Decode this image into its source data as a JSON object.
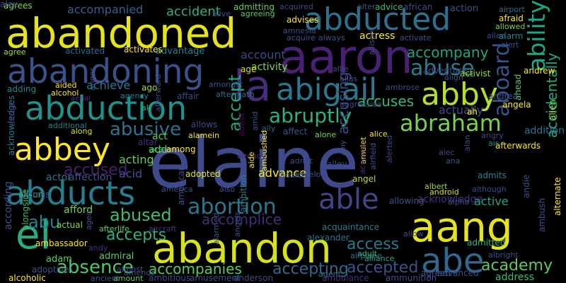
{
  "words": [
    {
      "text": "elaine",
      "color": "#3e4a89"
    },
    {
      "text": "abandoned",
      "color": "#e5e419"
    },
    {
      "text": "aaron",
      "color": "#482173"
    },
    {
      "text": "abandon",
      "color": "#d8e219"
    },
    {
      "text": "abandoning",
      "color": "#3b518b"
    },
    {
      "text": "abducted",
      "color": "#2c728e"
    },
    {
      "text": "la",
      "color": "#472d7b"
    },
    {
      "text": "abduction",
      "color": "#21918c"
    },
    {
      "text": "aang",
      "color": "#e5e419"
    },
    {
      "text": "abducts",
      "color": "#287d8e"
    },
    {
      "text": "el",
      "color": "#26ad81"
    },
    {
      "text": "abigail",
      "color": "#2a788e"
    },
    {
      "text": "abby",
      "color": "#b5de2b"
    },
    {
      "text": "abbey",
      "color": "#fde725"
    },
    {
      "text": "abe",
      "color": "#31688e"
    },
    {
      "text": "abraham",
      "color": "#7ad151"
    },
    {
      "text": "aboard",
      "color": "#3b528b"
    },
    {
      "text": "ability",
      "color": "#21a685"
    },
    {
      "text": "able",
      "color": "#414487"
    },
    {
      "text": "abortion",
      "color": "#2a788e"
    },
    {
      "text": "abruptly",
      "color": "#2db27d"
    },
    {
      "text": "abuse",
      "color": "#287d8e"
    },
    {
      "text": "abusive",
      "color": "#2c728e"
    },
    {
      "text": "absence",
      "color": "#54c568"
    },
    {
      "text": "abused",
      "color": "#3fbc73"
    },
    {
      "text": "abu",
      "color": "#25848e"
    },
    {
      "text": "accidentally",
      "color": "#22a884"
    },
    {
      "text": "academy",
      "color": "#5ec962"
    },
    {
      "text": "accompanies",
      "color": "#5ec962"
    },
    {
      "text": "accepting",
      "color": "#31688e"
    },
    {
      "text": "accepted",
      "color": "#3b528b"
    },
    {
      "text": "accepts",
      "color": "#2db27d"
    },
    {
      "text": "access",
      "color": "#2a788e"
    },
    {
      "text": "accused",
      "color": "#481f70"
    },
    {
      "text": "accept",
      "color": "#22a884"
    },
    {
      "text": "accusing",
      "color": "#3e4a89"
    },
    {
      "text": "accuses",
      "color": "#35b779"
    },
    {
      "text": "accompany",
      "color": "#20a486"
    },
    {
      "text": "accomplice",
      "color": "#472d7b"
    },
    {
      "text": "accident",
      "color": "#2db27d"
    },
    {
      "text": "accompanied",
      "color": "#35608d"
    },
    {
      "text": "achieve",
      "color": "#2a788e"
    },
    {
      "text": "acting",
      "color": "#6ccd5a"
    },
    {
      "text": "acid",
      "color": "#3b528b"
    },
    {
      "text": "account",
      "color": "#3e4a89"
    },
    {
      "text": "activity",
      "color": "#84d44b"
    },
    {
      "text": "advance",
      "color": "#fde725"
    },
    {
      "text": "acknowledge",
      "color": "#46327e"
    },
    {
      "text": "acquaintance",
      "color": "#26828e"
    },
    {
      "text": "address",
      "color": "#3fbc73"
    },
    {
      "text": "actually",
      "color": "#3e4a89"
    },
    {
      "text": "actor",
      "color": "#2c728e"
    },
    {
      "text": "affection",
      "color": "#3b528b"
    },
    {
      "text": "afford",
      "color": "#7ad151"
    },
    {
      "text": "affair",
      "color": "#3e4a89"
    },
    {
      "text": "adoptive",
      "color": "#3b528b"
    },
    {
      "text": "according",
      "color": "#3b528b"
    },
    {
      "text": "acknowledges",
      "color": "#287d8e"
    },
    {
      "text": "active",
      "color": "#20a486"
    },
    {
      "text": "admitted",
      "color": "#35b779"
    },
    {
      "text": "admiral",
      "color": "#5ec962"
    },
    {
      "text": "adam",
      "color": "#5ec962"
    },
    {
      "text": "actress",
      "color": "#fde725"
    },
    {
      "text": "adopted",
      "color": "#e5e419"
    },
    {
      "text": "add",
      "color": "#7ad151"
    },
    {
      "text": "act",
      "color": "#5ec962"
    },
    {
      "text": "ace",
      "color": "#2db27d"
    },
    {
      "text": "adopt",
      "color": "#440154"
    },
    {
      "text": "age",
      "color": "#d8e219"
    },
    {
      "text": "advantage",
      "color": "#26828e"
    },
    {
      "text": "activates",
      "color": "#fde725"
    },
    {
      "text": "activated",
      "color": "#31688e"
    },
    {
      "text": "adding",
      "color": "#24868e"
    },
    {
      "text": "aided",
      "color": "#fde725"
    },
    {
      "text": "alcohol",
      "color": "#fde725"
    },
    {
      "text": "ago",
      "color": "#a0da39"
    },
    {
      "text": "ali",
      "color": "#35b779"
    },
    {
      "text": "alfred",
      "color": "#472d7b"
    },
    {
      "text": "additional",
      "color": "#26828e"
    },
    {
      "text": "along",
      "color": "#d8e219"
    },
    {
      "text": "allows",
      "color": "#3e4a89"
    },
    {
      "text": "alamein",
      "color": "#fde725"
    },
    {
      "text": "affect",
      "color": "#3b528b"
    },
    {
      "text": "alone",
      "color": "#7ad151"
    },
    {
      "text": "alice",
      "color": "#fde725"
    },
    {
      "text": "ally",
      "color": "#31688e"
    },
    {
      "text": "admit",
      "color": "#3e4a89"
    },
    {
      "text": "addict",
      "color": "#3b528b"
    },
    {
      "text": "ambushed",
      "color": "#fde725"
    },
    {
      "text": "angel",
      "color": "#b5de2b"
    },
    {
      "text": "angelo",
      "color": "#3b528b"
    },
    {
      "text": "amulet",
      "color": "#fde725"
    },
    {
      "text": "allowing",
      "color": "#3b528b"
    },
    {
      "text": "albert",
      "color": "#a0da39"
    },
    {
      "text": "android",
      "color": "#d8e219"
    },
    {
      "text": "alpha",
      "color": "#3e4a89"
    },
    {
      "text": "admits",
      "color": "#26828e"
    },
    {
      "text": "alexander",
      "color": "#2c728e"
    },
    {
      "text": "airplane",
      "color": "#2c728e"
    },
    {
      "text": "adult",
      "color": "#2db27d"
    },
    {
      "text": "alliance",
      "color": "#20a486"
    },
    {
      "text": "albright",
      "color": "#3b528b"
    },
    {
      "text": "advanced",
      "color": "#3b528b"
    },
    {
      "text": "anderson",
      "color": "#3e4a89"
    },
    {
      "text": "amount",
      "color": "#5ec962"
    },
    {
      "text": "ambitious",
      "color": "#3e4a89"
    },
    {
      "text": "amusement",
      "color": "#3b528b"
    },
    {
      "text": "agent",
      "color": "#287d8e"
    },
    {
      "text": "ambulance",
      "color": "#46327e"
    },
    {
      "text": "ammunition",
      "color": "#3b528b"
    },
    {
      "text": "alcoholic",
      "color": "#fde725"
    },
    {
      "text": "ancient",
      "color": "#3b528b"
    },
    {
      "text": "alison",
      "color": "#35b779"
    },
    {
      "text": "actual",
      "color": "#84d44b"
    },
    {
      "text": "afterlife",
      "color": "#5ec962"
    },
    {
      "text": "aircraft",
      "color": "#46327e"
    },
    {
      "text": "ambassador",
      "color": "#fde725"
    },
    {
      "text": "alongside",
      "color": "#3fbc73"
    },
    {
      "text": "airport",
      "color": "#31688e"
    },
    {
      "text": "action",
      "color": "#3b528b"
    },
    {
      "text": "african",
      "color": "#3e4a89"
    },
    {
      "text": "advice",
      "color": "#3fbc73"
    },
    {
      "text": "alter",
      "color": "#3b528b"
    },
    {
      "text": "acquired",
      "color": "#3e4a89"
    },
    {
      "text": "admitting",
      "color": "#6ccd5a"
    },
    {
      "text": "agrees",
      "color": "#84d44b"
    },
    {
      "text": "alive",
      "color": "#3e4a89"
    },
    {
      "text": "agreeing",
      "color": "#5ec962"
    },
    {
      "text": "agree",
      "color": "#a0da39"
    },
    {
      "text": "afraid",
      "color": "#fde725"
    },
    {
      "text": "allowed",
      "color": "#7ad151"
    },
    {
      "text": "alarm",
      "color": "#26828e"
    },
    {
      "text": "alert",
      "color": "#3b528b"
    },
    {
      "text": "allen",
      "color": "#3e4a89"
    },
    {
      "text": "activate",
      "color": "#3b528b"
    },
    {
      "text": "acquire",
      "color": "#3b528b"
    },
    {
      "text": "always",
      "color": "#3b528b"
    },
    {
      "text": "amnesia",
      "color": "#3e4a89"
    },
    {
      "text": "advises",
      "color": "#fde725"
    },
    {
      "text": "adventure",
      "color": "#3e4a89"
    },
    {
      "text": "activist",
      "color": "#a0da39"
    },
    {
      "text": "andrew",
      "color": "#fde725"
    },
    {
      "text": "allie",
      "color": "#3e4a89"
    },
    {
      "text": "alias",
      "color": "#3b528b"
    },
    {
      "text": "align",
      "color": "#3b528b"
    },
    {
      "text": "allison",
      "color": "#3e4a89"
    },
    {
      "text": "amongst",
      "color": "#3b528b"
    },
    {
      "text": "aftermath",
      "color": "#2c728e"
    },
    {
      "text": "ambrose",
      "color": "#3e4a89"
    },
    {
      "text": "aggressive",
      "color": "#3e4a89"
    },
    {
      "text": "angela",
      "color": "#fde725"
    },
    {
      "text": "ah",
      "color": "#fde725"
    },
    {
      "text": "ahead",
      "color": "#5ec962"
    },
    {
      "text": "addition",
      "color": "#2c728e"
    },
    {
      "text": "alien",
      "color": "#a0da39"
    },
    {
      "text": "afterwards",
      "color": "#fde725"
    },
    {
      "text": "angry",
      "color": "#3e4a89"
    },
    {
      "text": "air",
      "color": "#26828e"
    },
    {
      "text": "alec",
      "color": "#3e4a89"
    },
    {
      "text": "ana",
      "color": "#3b528b"
    },
    {
      "text": "alan",
      "color": "#3e4a89"
    },
    {
      "text": "although",
      "color": "#3e4a89"
    },
    {
      "text": "andie",
      "color": "#3b528b"
    },
    {
      "text": "alternate",
      "color": "#fde725"
    },
    {
      "text": "already",
      "color": "#46327e"
    },
    {
      "text": "also",
      "color": "#3b528b"
    },
    {
      "text": "aide",
      "color": "#fde725"
    },
    {
      "text": "amid",
      "color": "#3b528b"
    },
    {
      "text": "anger",
      "color": "#3b528b"
    },
    {
      "text": "agency",
      "color": "#26828e"
    },
    {
      "text": "aerial",
      "color": "#46327e"
    },
    {
      "text": "altar",
      "color": "#46327e"
    },
    {
      "text": "among",
      "color": "#fde725"
    },
    {
      "text": "alley",
      "color": "#3e4a89"
    },
    {
      "text": "amy",
      "color": "#3b528b"
    },
    {
      "text": "alerted",
      "color": "#3e4a89"
    },
    {
      "text": "airfield",
      "color": "#3b528b"
    },
    {
      "text": "acquires",
      "color": "#46327e"
    },
    {
      "text": "across",
      "color": "#3b528b"
    },
    {
      "text": "agreed",
      "color": "#3b528b"
    },
    {
      "text": "aged",
      "color": "#3b528b"
    },
    {
      "text": "andy",
      "color": "#46327e"
    },
    {
      "text": "almost",
      "color": "#3b528b"
    },
    {
      "text": "amends",
      "color": "#3b528b"
    },
    {
      "text": "america",
      "color": "#3b528b"
    },
    {
      "text": "american",
      "color": "#3b528b"
    },
    {
      "text": "afterward",
      "color": "#3e4a89"
    },
    {
      "text": "ambush",
      "color": "#3b528b"
    },
    {
      "text": "ambition",
      "color": "#26828e"
    },
    {
      "text": "alarmed",
      "color": "#3b528b"
    },
    {
      "text": "angels",
      "color": "#3b528b"
    },
    {
      "text": "allow",
      "color": "#3b528b"
    },
    {
      "text": "andrea",
      "color": "#3b528b"
    },
    {
      "text": "alex",
      "color": "#3b528b"
    }
  ]
}
